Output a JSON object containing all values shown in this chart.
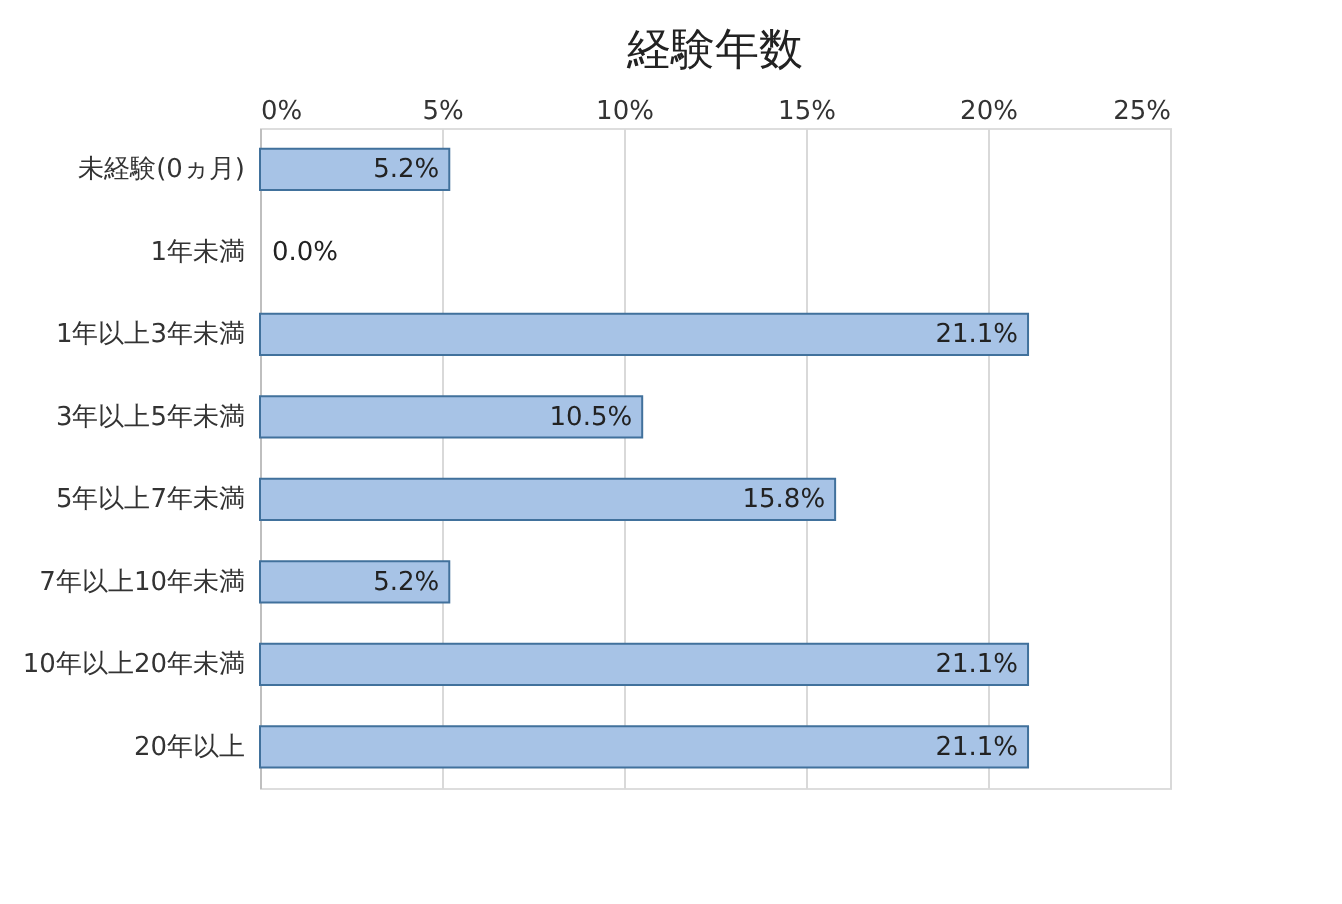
{
  "chart_data": {
    "type": "bar",
    "orientation": "horizontal",
    "title": "経験年数",
    "categories": [
      "未経験(0ヵ月)",
      "1年未満",
      "1年以上3年未満",
      "3年以上5年未満",
      "5年以上7年未満",
      "7年以上10年未満",
      "10年以上20年未満",
      "20年以上"
    ],
    "values": [
      5.2,
      0.0,
      21.1,
      10.5,
      15.8,
      5.2,
      21.1,
      21.1
    ],
    "value_labels": [
      "5.2%",
      "0.0%",
      "21.1%",
      "10.5%",
      "15.8%",
      "5.2%",
      "21.1%",
      "21.1%"
    ],
    "color": "#a7c3e6",
    "xlim": [
      0,
      25
    ],
    "xticks": [
      {
        "value": 0,
        "label": "0%"
      },
      {
        "value": 5,
        "label": "5%"
      },
      {
        "value": 10,
        "label": "10%"
      },
      {
        "value": 15,
        "label": "15%"
      },
      {
        "value": 20,
        "label": "20%"
      },
      {
        "value": 25,
        "label": "25%"
      }
    ],
    "grid": "x"
  }
}
